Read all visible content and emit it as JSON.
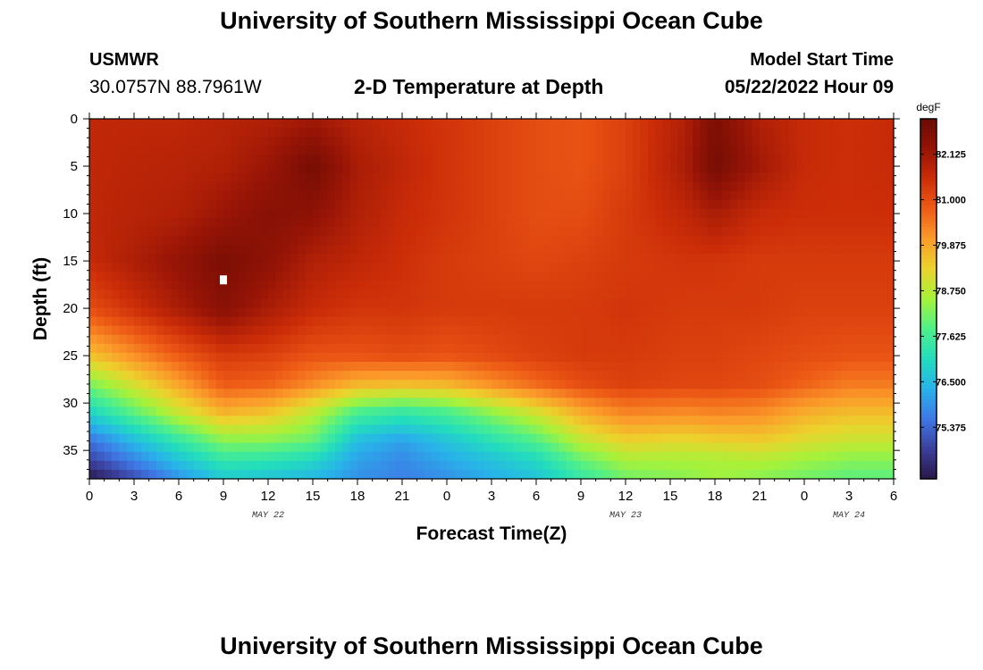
{
  "header": {
    "title": "University of Southern Mississippi Ocean Cube",
    "station_id": "USMWR",
    "coordinates": "30.0757N  88.7961W",
    "subtitle": "2-D Temperature at Depth",
    "model_start_label": "Model Start Time",
    "model_start_value": "05/22/2022 Hour 09"
  },
  "footer": {
    "title": "University of Southern Mississippi Ocean Cube"
  },
  "chart_data": {
    "type": "heatmap",
    "title": "2-D Temperature at Depth",
    "xlabel": "Forecast Time(Z)",
    "ylabel": "Depth (ft)",
    "x_unit": "hours since 05/22 00Z",
    "x_range": [
      0,
      54
    ],
    "x_ticks": [
      0,
      3,
      6,
      9,
      12,
      15,
      18,
      21,
      24,
      27,
      30,
      33,
      36,
      39,
      42,
      45,
      48,
      51,
      54
    ],
    "x_tick_labels": [
      "0",
      "3",
      "6",
      "9",
      "12",
      "15",
      "18",
      "21",
      "0",
      "3",
      "6",
      "9",
      "12",
      "15",
      "18",
      "21",
      "0",
      "3",
      "6"
    ],
    "date_labels": [
      {
        "x": 12,
        "text": "MAY 22"
      },
      {
        "x": 36,
        "text": "MAY 23"
      },
      {
        "x": 51,
        "text": "MAY 24"
      }
    ],
    "y_range": [
      0,
      38
    ],
    "y_ticks": [
      0,
      5,
      10,
      15,
      20,
      25,
      30,
      35
    ],
    "y_inverted": true,
    "colorbar": {
      "unit": "degF",
      "range": [
        74.1,
        83.0
      ],
      "ticks": [
        75.375,
        76.5,
        77.625,
        78.75,
        79.875,
        81.0,
        82.125
      ],
      "tick_labels": [
        "75.375",
        "76.500",
        "77.625",
        "78.750",
        "79.875",
        "81.000",
        "82.125"
      ],
      "colors": [
        "#2a1848",
        "#3b3f9c",
        "#3f78e6",
        "#28b3ea",
        "#22dcbe",
        "#4ff08a",
        "#a6f23a",
        "#ecd32c",
        "#fb9a2a",
        "#ee5b16",
        "#cc2d08",
        "#961406",
        "#6a0b04"
      ]
    },
    "grid": {
      "depths_ft": [
        0,
        5,
        10,
        15,
        20,
        25,
        28,
        31,
        34,
        36,
        38
      ],
      "times_hr": [
        0,
        6,
        9,
        12,
        15,
        18,
        21,
        24,
        30,
        33,
        36,
        40,
        42,
        45,
        48,
        51,
        54
      ],
      "temperature_degF": [
        [
          81.7,
          81.7,
          81.8,
          81.9,
          82.1,
          81.8,
          81.6,
          81.4,
          81.0,
          80.9,
          81.2,
          81.9,
          82.7,
          81.9,
          81.6,
          81.5,
          81.6
        ],
        [
          81.7,
          81.8,
          81.9,
          82.2,
          82.8,
          82.0,
          81.7,
          81.4,
          81.0,
          80.9,
          81.2,
          82.0,
          82.8,
          82.1,
          81.6,
          81.5,
          81.6
        ],
        [
          81.7,
          81.9,
          82.2,
          82.5,
          82.4,
          81.9,
          81.6,
          81.4,
          81.0,
          81.0,
          81.3,
          81.7,
          82.0,
          81.6,
          81.5,
          81.5,
          81.5
        ],
        [
          81.6,
          82.3,
          82.7,
          82.4,
          81.9,
          81.7,
          81.5,
          81.3,
          81.1,
          81.2,
          81.3,
          81.4,
          81.4,
          81.3,
          81.3,
          81.3,
          81.3
        ],
        [
          81.0,
          82.0,
          82.5,
          82.0,
          81.6,
          81.4,
          81.4,
          81.3,
          81.3,
          81.3,
          81.4,
          81.3,
          81.3,
          81.3,
          81.2,
          81.2,
          81.2
        ],
        [
          79.5,
          80.8,
          81.3,
          81.2,
          80.9,
          80.9,
          81.0,
          80.9,
          81.2,
          81.3,
          81.3,
          81.2,
          81.2,
          81.1,
          81.0,
          80.9,
          80.9
        ],
        [
          78.2,
          79.9,
          80.8,
          80.7,
          80.2,
          79.7,
          79.6,
          79.7,
          80.6,
          81.0,
          81.2,
          81.1,
          81.1,
          81.0,
          80.7,
          80.4,
          80.4
        ],
        [
          76.9,
          78.9,
          79.7,
          79.5,
          78.8,
          77.7,
          77.4,
          77.7,
          79.0,
          79.8,
          80.3,
          80.2,
          80.3,
          80.2,
          79.8,
          79.6,
          79.6
        ],
        [
          75.5,
          77.4,
          78.3,
          78.3,
          78.0,
          76.5,
          76.1,
          76.6,
          77.8,
          78.8,
          79.3,
          79.2,
          79.3,
          79.4,
          79.1,
          78.9,
          78.9
        ],
        [
          74.9,
          76.6,
          77.4,
          77.3,
          77.0,
          76.1,
          75.8,
          76.2,
          77.0,
          78.0,
          78.6,
          78.6,
          78.6,
          78.7,
          78.5,
          78.3,
          78.3
        ],
        [
          74.1,
          75.9,
          76.7,
          76.6,
          76.4,
          75.9,
          75.7,
          75.9,
          76.6,
          77.4,
          78.1,
          78.3,
          78.5,
          78.3,
          78.1,
          77.9,
          77.9
        ]
      ]
    },
    "marker": {
      "x": 9,
      "y": 17
    }
  }
}
